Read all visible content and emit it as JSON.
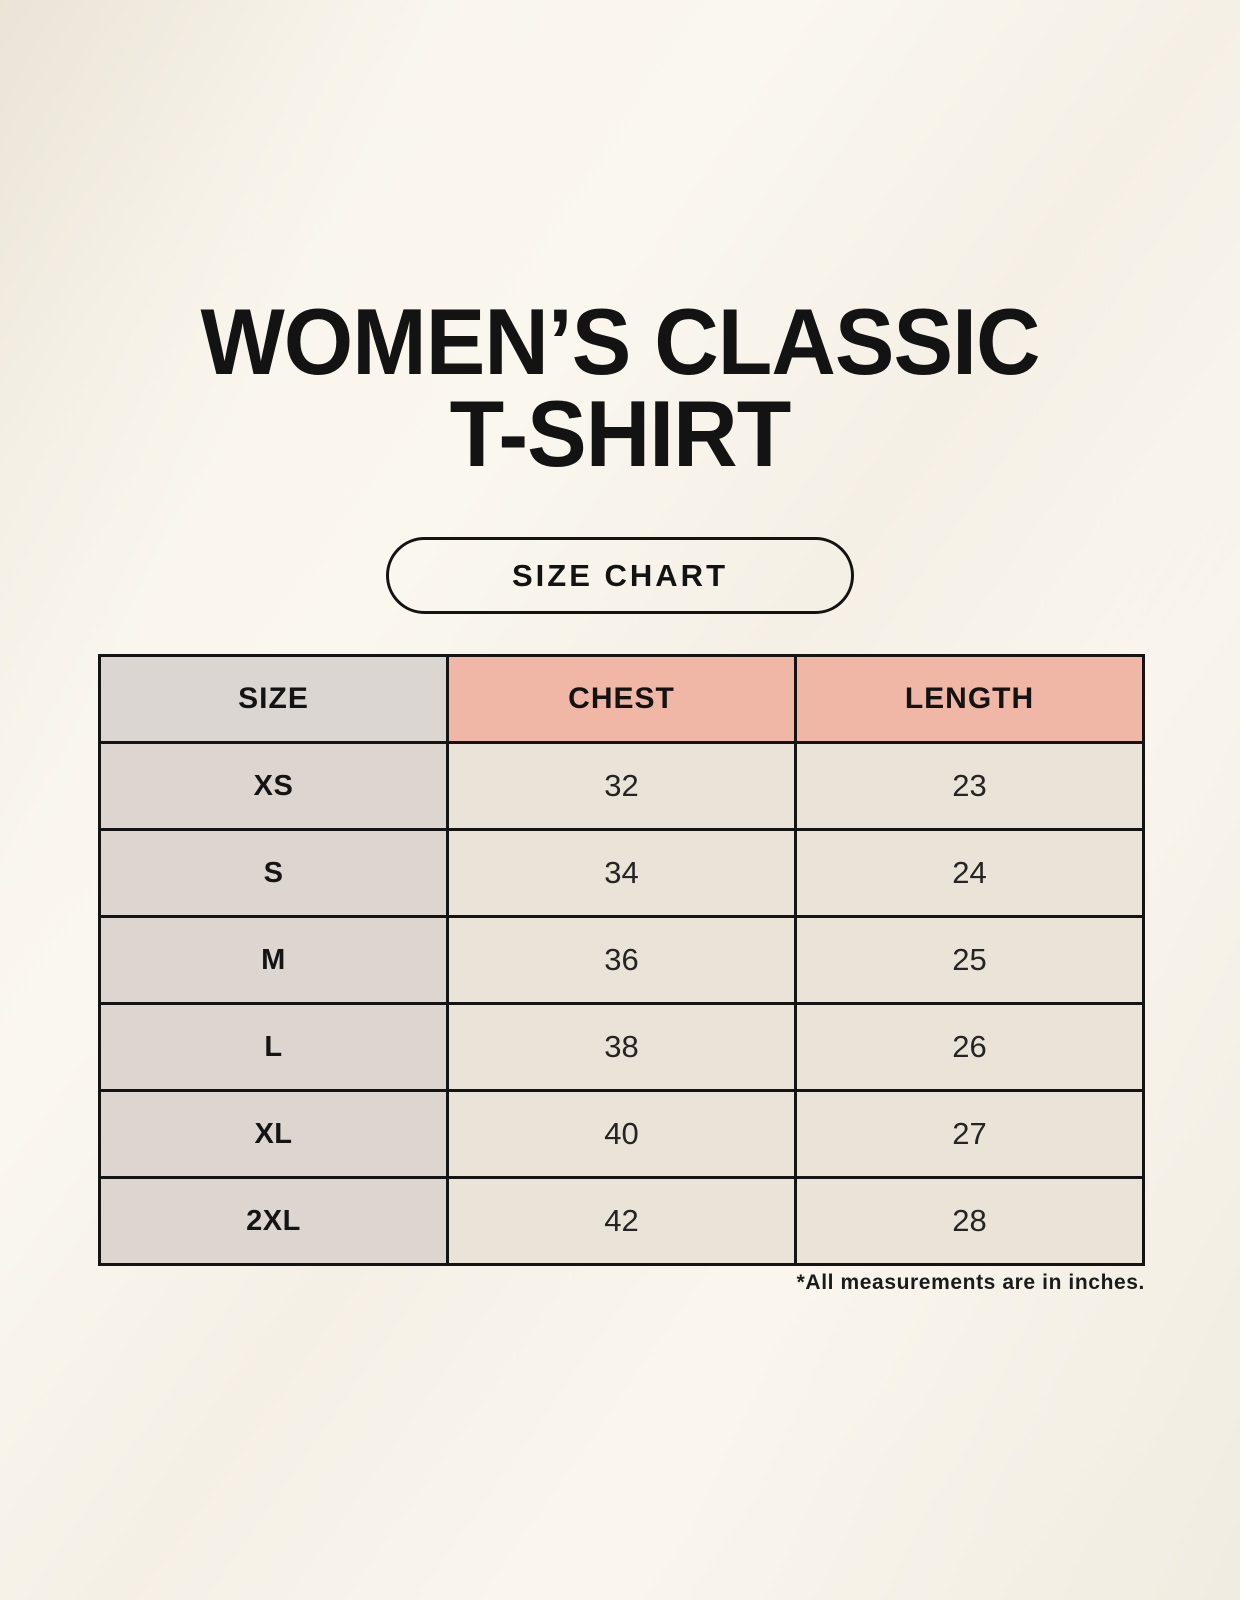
{
  "header": {
    "title_line1": "WOMEN’S CLASSIC",
    "title_line2": "T-SHIRT",
    "button_label": "SIZE CHART"
  },
  "chart_data": {
    "type": "table",
    "title": "WOMEN’S CLASSIC T-SHIRT SIZE CHART",
    "columns": [
      "SIZE",
      "CHEST",
      "LENGTH"
    ],
    "rows": [
      [
        "XS",
        "32",
        "23"
      ],
      [
        "S",
        "34",
        "24"
      ],
      [
        "M",
        "36",
        "25"
      ],
      [
        "L",
        "38",
        "26"
      ],
      [
        "XL",
        "40",
        "27"
      ],
      [
        "2XL",
        "42",
        "28"
      ]
    ]
  },
  "footnote": "*All measurements are in inches.",
  "colors": {
    "background": "#f8f4eb",
    "header_size_bg": "#dcd6d2",
    "header_measure_bg": "#f0b6a6",
    "size_column_bg": "#ddd6d0",
    "data_cell_bg": "#eae3d7",
    "border": "#141414",
    "text": "#141414"
  }
}
